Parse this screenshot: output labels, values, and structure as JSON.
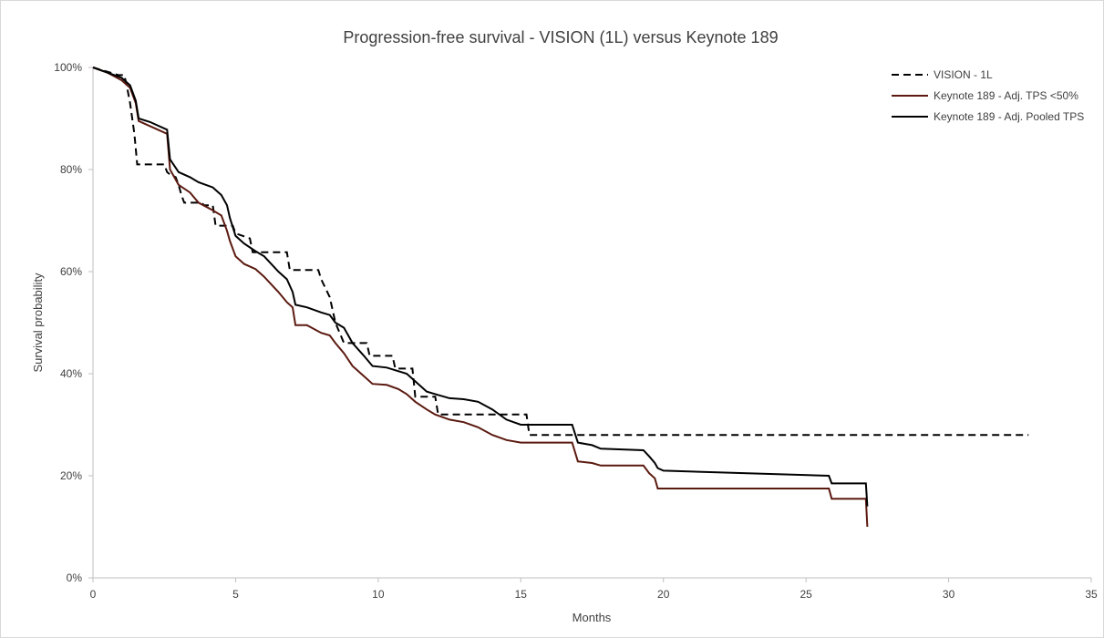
{
  "chart_data": {
    "type": "line",
    "title": "Progression-free survival -  VISION (1L) versus Keynote 189",
    "xlabel": "Months",
    "ylabel": "Survival  probability",
    "xlim": [
      0,
      35
    ],
    "ylim": [
      0,
      1
    ],
    "x_ticks": [
      "0",
      "5",
      "10",
      "15",
      "20",
      "25",
      "30",
      "35"
    ],
    "y_ticks": [
      "0%",
      "20%",
      "40%",
      "60%",
      "80%",
      "100%"
    ],
    "grid": false,
    "legend_position": "top-right",
    "series": [
      {
        "name": "VISION - 1L",
        "style": "dashed",
        "color": "#000000",
        "points": [
          [
            0,
            1.0
          ],
          [
            0.3,
            0.995
          ],
          [
            0.6,
            0.99
          ],
          [
            0.9,
            0.985
          ],
          [
            1.1,
            0.985
          ],
          [
            1.2,
            0.96
          ],
          [
            1.3,
            0.93
          ],
          [
            1.45,
            0.87
          ],
          [
            1.55,
            0.81
          ],
          [
            2.5,
            0.81
          ],
          [
            2.6,
            0.795
          ],
          [
            2.7,
            0.79
          ],
          [
            2.9,
            0.785
          ],
          [
            3.0,
            0.77
          ],
          [
            3.1,
            0.75
          ],
          [
            3.2,
            0.735
          ],
          [
            3.8,
            0.735
          ],
          [
            3.9,
            0.73
          ],
          [
            4.2,
            0.73
          ],
          [
            4.3,
            0.69
          ],
          [
            4.9,
            0.69
          ],
          [
            5.0,
            0.675
          ],
          [
            5.5,
            0.665
          ],
          [
            5.6,
            0.638
          ],
          [
            6.8,
            0.638
          ],
          [
            6.9,
            0.603
          ],
          [
            7.9,
            0.603
          ],
          [
            8.0,
            0.585
          ],
          [
            8.3,
            0.55
          ],
          [
            8.5,
            0.5
          ],
          [
            8.8,
            0.46
          ],
          [
            9.6,
            0.46
          ],
          [
            9.7,
            0.435
          ],
          [
            10.5,
            0.435
          ],
          [
            10.6,
            0.41
          ],
          [
            11.2,
            0.41
          ],
          [
            11.3,
            0.355
          ],
          [
            12.0,
            0.355
          ],
          [
            12.1,
            0.32
          ],
          [
            15.2,
            0.32
          ],
          [
            15.3,
            0.28
          ],
          [
            32.8,
            0.28
          ]
        ]
      },
      {
        "name": "Keynote 189 - Adj. TPS <50%",
        "style": "solid",
        "color": "#5b1a10",
        "points": [
          [
            0,
            1.0
          ],
          [
            0.5,
            0.99
          ],
          [
            1.0,
            0.975
          ],
          [
            1.3,
            0.96
          ],
          [
            1.5,
            0.93
          ],
          [
            1.6,
            0.895
          ],
          [
            2.0,
            0.885
          ],
          [
            2.6,
            0.87
          ],
          [
            2.7,
            0.8
          ],
          [
            3.0,
            0.77
          ],
          [
            3.4,
            0.755
          ],
          [
            3.7,
            0.735
          ],
          [
            4.2,
            0.72
          ],
          [
            4.5,
            0.71
          ],
          [
            4.7,
            0.68
          ],
          [
            4.8,
            0.66
          ],
          [
            5.0,
            0.63
          ],
          [
            5.3,
            0.615
          ],
          [
            5.7,
            0.605
          ],
          [
            6.0,
            0.59
          ],
          [
            6.5,
            0.56
          ],
          [
            6.8,
            0.54
          ],
          [
            7.0,
            0.53
          ],
          [
            7.1,
            0.495
          ],
          [
            7.5,
            0.495
          ],
          [
            8.0,
            0.48
          ],
          [
            8.3,
            0.475
          ],
          [
            8.5,
            0.46
          ],
          [
            8.8,
            0.44
          ],
          [
            9.1,
            0.415
          ],
          [
            9.5,
            0.395
          ],
          [
            9.8,
            0.38
          ],
          [
            10.3,
            0.378
          ],
          [
            10.7,
            0.37
          ],
          [
            11.0,
            0.36
          ],
          [
            11.3,
            0.345
          ],
          [
            11.7,
            0.33
          ],
          [
            12.0,
            0.32
          ],
          [
            12.5,
            0.31
          ],
          [
            13.0,
            0.305
          ],
          [
            13.5,
            0.295
          ],
          [
            14.0,
            0.28
          ],
          [
            14.5,
            0.27
          ],
          [
            15.0,
            0.265
          ],
          [
            16.0,
            0.265
          ],
          [
            16.8,
            0.265
          ],
          [
            17.0,
            0.228
          ],
          [
            17.5,
            0.225
          ],
          [
            17.8,
            0.22
          ],
          [
            19.3,
            0.22
          ],
          [
            19.5,
            0.205
          ],
          [
            19.7,
            0.195
          ],
          [
            19.8,
            0.175
          ],
          [
            20.0,
            0.175
          ],
          [
            25.8,
            0.175
          ],
          [
            25.9,
            0.155
          ],
          [
            27.1,
            0.155
          ],
          [
            27.15,
            0.1
          ]
        ]
      },
      {
        "name": "Keynote 189 - Adj. Pooled TPS",
        "style": "solid",
        "color": "#000000",
        "points": [
          [
            0,
            1.0
          ],
          [
            0.5,
            0.99
          ],
          [
            1.0,
            0.98
          ],
          [
            1.3,
            0.965
          ],
          [
            1.5,
            0.935
          ],
          [
            1.6,
            0.9
          ],
          [
            2.0,
            0.893
          ],
          [
            2.6,
            0.878
          ],
          [
            2.7,
            0.82
          ],
          [
            3.0,
            0.795
          ],
          [
            3.4,
            0.785
          ],
          [
            3.7,
            0.775
          ],
          [
            4.2,
            0.765
          ],
          [
            4.5,
            0.75
          ],
          [
            4.7,
            0.73
          ],
          [
            4.8,
            0.705
          ],
          [
            5.0,
            0.67
          ],
          [
            5.3,
            0.655
          ],
          [
            5.7,
            0.64
          ],
          [
            6.0,
            0.63
          ],
          [
            6.5,
            0.6
          ],
          [
            6.8,
            0.585
          ],
          [
            7.0,
            0.56
          ],
          [
            7.1,
            0.535
          ],
          [
            7.5,
            0.53
          ],
          [
            8.0,
            0.52
          ],
          [
            8.3,
            0.515
          ],
          [
            8.5,
            0.5
          ],
          [
            8.8,
            0.49
          ],
          [
            9.1,
            0.46
          ],
          [
            9.5,
            0.435
          ],
          [
            9.8,
            0.415
          ],
          [
            10.3,
            0.412
          ],
          [
            10.7,
            0.405
          ],
          [
            11.0,
            0.4
          ],
          [
            11.3,
            0.385
          ],
          [
            11.7,
            0.365
          ],
          [
            12.0,
            0.36
          ],
          [
            12.5,
            0.352
          ],
          [
            13.0,
            0.35
          ],
          [
            13.5,
            0.345
          ],
          [
            14.0,
            0.33
          ],
          [
            14.5,
            0.31
          ],
          [
            15.0,
            0.3
          ],
          [
            16.0,
            0.3
          ],
          [
            16.8,
            0.3
          ],
          [
            17.0,
            0.265
          ],
          [
            17.5,
            0.26
          ],
          [
            17.8,
            0.253
          ],
          [
            19.3,
            0.25
          ],
          [
            19.5,
            0.238
          ],
          [
            19.7,
            0.225
          ],
          [
            19.8,
            0.215
          ],
          [
            20.0,
            0.21
          ],
          [
            25.8,
            0.2
          ],
          [
            25.9,
            0.185
          ],
          [
            27.1,
            0.185
          ],
          [
            27.15,
            0.14
          ]
        ]
      }
    ]
  }
}
